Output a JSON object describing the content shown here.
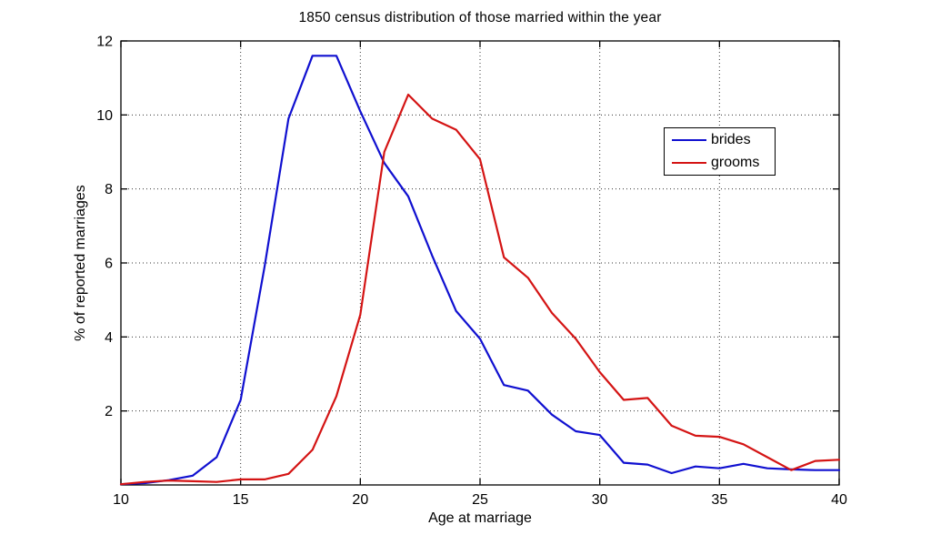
{
  "figure": {
    "background": "#ffffff",
    "axes_border_color": "#000000",
    "grid_style": "dotted"
  },
  "chart_data": {
    "type": "line",
    "title": "1850 census distribution of those married within the year",
    "xlabel": "Age at marriage",
    "ylabel": "% of reported marriages",
    "xlim": [
      10,
      40
    ],
    "ylim": [
      0,
      12
    ],
    "x_ticks": [
      10,
      15,
      20,
      25,
      30,
      35,
      40
    ],
    "y_ticks": [
      2,
      4,
      6,
      8,
      10,
      12
    ],
    "grid": true,
    "legend_position": "upper-right-inside",
    "x": [
      10,
      11,
      12,
      13,
      14,
      15,
      16,
      17,
      18,
      19,
      20,
      21,
      22,
      23,
      24,
      25,
      26,
      27,
      28,
      29,
      30,
      31,
      32,
      33,
      34,
      35,
      36,
      37,
      38,
      39,
      40
    ],
    "series": [
      {
        "name": "brides",
        "color": "#1010d0",
        "values": [
          0.02,
          0.05,
          0.13,
          0.25,
          0.75,
          2.3,
          5.9,
          9.9,
          11.6,
          11.6,
          10.1,
          8.7,
          7.8,
          6.2,
          4.7,
          3.95,
          2.7,
          2.55,
          1.9,
          1.45,
          1.35,
          0.6,
          0.55,
          0.32,
          0.5,
          0.45,
          0.57,
          0.45,
          0.42,
          0.4,
          0.4
        ]
      },
      {
        "name": "grooms",
        "color": "#d41414",
        "values": [
          0.02,
          0.08,
          0.12,
          0.1,
          0.08,
          0.15,
          0.15,
          0.3,
          0.95,
          2.4,
          4.6,
          9.0,
          10.55,
          9.9,
          9.6,
          8.8,
          6.15,
          5.6,
          4.65,
          3.95,
          3.05,
          2.3,
          2.35,
          1.6,
          1.33,
          1.3,
          1.1,
          0.75,
          0.4,
          0.65,
          0.68
        ]
      }
    ]
  }
}
